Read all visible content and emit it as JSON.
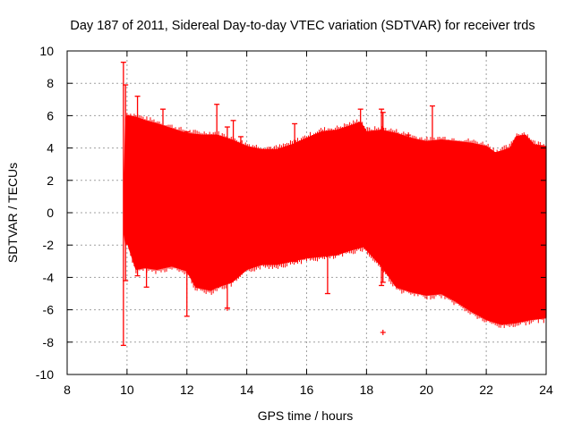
{
  "chart_data": {
    "type": "scatter",
    "title": "Day 187 of 2011, Sidereal Day-to-day VTEC variation (SDTVAR) for receiver trds",
    "xlabel": "GPS time / hours",
    "ylabel": "SDTVAR / TECUs",
    "xlim": [
      8,
      24
    ],
    "ylim": [
      -10,
      10
    ],
    "x_ticks": [
      8,
      10,
      12,
      14,
      16,
      18,
      20,
      22,
      24
    ],
    "y_ticks": [
      -10,
      -8,
      -6,
      -4,
      -2,
      0,
      2,
      4,
      6,
      8,
      10
    ],
    "x_tick_labels": [
      "8",
      "10",
      "12",
      "14",
      "16",
      "18",
      "20",
      "22",
      "24"
    ],
    "y_tick_labels": [
      "-10",
      "-8",
      "-6",
      "-4",
      "-2",
      "0",
      "2",
      "4",
      "6",
      "8",
      "10"
    ],
    "grid": true,
    "series_color": "#ff0000",
    "series": [
      {
        "name": "SDTVAR",
        "marker": "+ with error bars",
        "envelope_upper": {
          "x": [
            9.9,
            9.95,
            10.0,
            10.3,
            10.6,
            11.0,
            11.5,
            12.0,
            12.5,
            13.0,
            13.5,
            14.0,
            14.5,
            15.0,
            15.5,
            16.0,
            16.5,
            17.0,
            17.5,
            17.8,
            18.0,
            18.5,
            19.0,
            19.5,
            20.0,
            20.5,
            21.0,
            21.5,
            22.0,
            22.3,
            22.5,
            22.8,
            23.0,
            23.3,
            23.6,
            24.0
          ],
          "y": [
            0.5,
            5.8,
            6.0,
            5.9,
            5.7,
            5.5,
            5.2,
            4.9,
            4.8,
            4.8,
            4.5,
            4.1,
            3.9,
            3.9,
            4.2,
            4.6,
            5.0,
            5.1,
            5.4,
            5.6,
            5.0,
            5.1,
            4.9,
            4.6,
            4.4,
            4.5,
            4.4,
            4.3,
            4.1,
            3.7,
            3.8,
            4.0,
            4.7,
            4.8,
            4.2,
            4.1
          ]
        },
        "envelope_lower": {
          "x": [
            9.9,
            9.95,
            10.0,
            10.3,
            10.6,
            11.0,
            11.5,
            12.0,
            12.3,
            12.8,
            13.0,
            13.5,
            14.0,
            14.5,
            15.0,
            15.5,
            16.0,
            16.5,
            17.0,
            17.5,
            17.9,
            18.0,
            18.5,
            19.0,
            19.5,
            20.0,
            20.5,
            21.0,
            21.5,
            22.0,
            22.5,
            23.0,
            23.5,
            24.0
          ],
          "y": [
            -1.0,
            -2.0,
            -1.8,
            -3.5,
            -3.4,
            -3.5,
            -3.3,
            -3.6,
            -4.6,
            -4.8,
            -4.6,
            -4.3,
            -3.5,
            -3.2,
            -3.2,
            -3.0,
            -2.8,
            -2.7,
            -2.6,
            -2.3,
            -2.1,
            -2.3,
            -3.3,
            -4.6,
            -4.9,
            -5.1,
            -5.0,
            -5.5,
            -6.1,
            -6.6,
            -6.9,
            -6.8,
            -6.6,
            -6.5
          ]
        },
        "spikes": [
          {
            "x": 9.88,
            "y_max": 9.3,
            "y_min": -8.2
          },
          {
            "x": 9.95,
            "y_max": 7.9,
            "y_min": -4.2
          },
          {
            "x": 10.35,
            "y_max": 7.2,
            "y_min": -3.9
          },
          {
            "x": 10.65,
            "y_max": 5.6,
            "y_min": -4.6
          },
          {
            "x": 11.2,
            "y_max": 6.4,
            "y_min": -3.2
          },
          {
            "x": 12.0,
            "y_max": 5.0,
            "y_min": -6.4
          },
          {
            "x": 13.0,
            "y_max": 6.7,
            "y_min": -4.6
          },
          {
            "x": 13.35,
            "y_max": 5.3,
            "y_min": -5.9
          },
          {
            "x": 13.55,
            "y_max": 5.7,
            "y_min": -3.9
          },
          {
            "x": 13.8,
            "y_max": 4.7,
            "y_min": -3.6
          },
          {
            "x": 15.6,
            "y_max": 5.5,
            "y_min": -3.0
          },
          {
            "x": 16.7,
            "y_max": 4.9,
            "y_min": -5.0
          },
          {
            "x": 17.8,
            "y_max": 6.4,
            "y_min": -1.9
          },
          {
            "x": 18.5,
            "y_max": 6.4,
            "y_min": -4.5
          },
          {
            "x": 18.55,
            "y_max": 6.2,
            "y_min": -4.3
          },
          {
            "x": 20.2,
            "y_max": 6.6,
            "y_min": -3.5
          }
        ],
        "outliers": [
          {
            "x": 18.55,
            "y": -7.4
          },
          {
            "x": 13.35,
            "y": -5.9
          },
          {
            "x": 19.4,
            "y": 4.8
          }
        ]
      }
    ]
  }
}
